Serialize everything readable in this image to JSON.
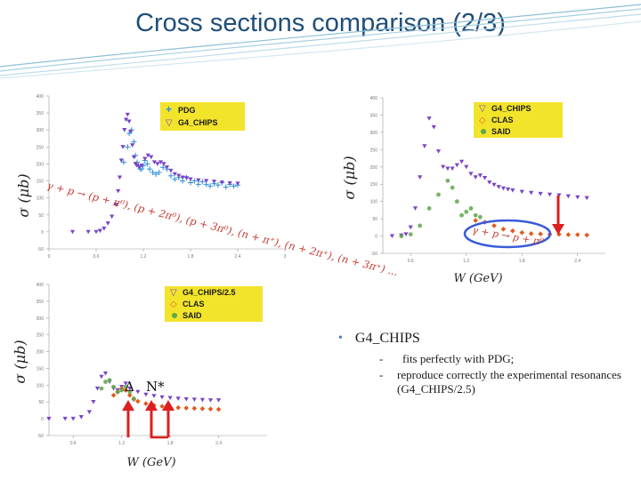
{
  "title": "Cross sections comparison  (2/3)",
  "colors": {
    "title": "#1f4e79",
    "pdg": "#2a8fd6",
    "chips": "#7a44c8",
    "clas": "#e25a1c",
    "said": "#5fa64a",
    "legend_bg": "#f2e42b",
    "arrow": "#dd1f1f",
    "bullet": "#3c79c9"
  },
  "panels": {
    "a": {
      "ylabel": "σ (μb)",
      "legend": [
        "PDG",
        "G4_CHIPS"
      ],
      "xticks": [
        "0",
        "0.6",
        "1.2",
        "1.8",
        "2.4",
        "3"
      ],
      "yticks": [
        "400",
        "350",
        "300",
        "250",
        "200",
        "150",
        "100",
        "50",
        "0",
        "-50"
      ],
      "annotation": "γ + p → (p + π⁰), (p + 2π⁰), (p + 3π⁰), (n + π⁺), (n + 2π⁺), (n + 3π⁺) ..."
    },
    "b": {
      "ylabel": "σ (μb)",
      "legend": [
        "G4_CHIPS",
        "CLAS",
        "SAID"
      ],
      "xticks": [
        "0.6",
        "1.2",
        "1.8",
        "2.4"
      ],
      "yticks": [
        "400",
        "350",
        "300",
        "250",
        "200",
        "150",
        "100",
        "50",
        "0",
        "-50"
      ],
      "xlabel": "W (GeV)",
      "annotation": "γ + p → p + π⁰"
    },
    "c": {
      "ylabel": "σ (μb)",
      "legend": [
        "G4_CHIPS/2.5",
        "CLAS",
        "SAID"
      ],
      "xticks": [
        "0.6",
        "1.2",
        "1.8",
        "2.4"
      ],
      "yticks": [
        "400",
        "350",
        "300",
        "250",
        "200",
        "150",
        "100",
        "50",
        "0",
        "-50"
      ],
      "xlabel": "W (GeV)",
      "delta_label": "Δ",
      "nstar_label": "N*"
    }
  },
  "bullets": {
    "main": "G4_CHIPS",
    "subs": [
      "fits perfectly with PDG;",
      "reproduce correctly the experimental resonances (G4_CHIPS/2.5)"
    ],
    "dash": "-"
  },
  "chart_data": [
    {
      "type": "scatter",
      "title": "",
      "xlabel": "",
      "ylabel": "σ (μb)",
      "xlim": [
        0,
        3
      ],
      "ylim": [
        -50,
        400
      ],
      "series": [
        {
          "name": "PDG",
          "marker": "plus",
          "x": [
            0.95,
            1.0,
            1.02,
            1.05,
            1.08,
            1.1,
            1.12,
            1.14,
            1.16,
            1.18,
            1.2,
            1.22,
            1.25,
            1.28,
            1.32,
            1.36,
            1.4,
            1.45,
            1.5,
            1.55,
            1.6,
            1.65,
            1.7,
            1.75,
            1.8,
            1.85,
            1.9,
            1.95,
            2.0,
            2.05,
            2.1,
            2.15,
            2.2,
            2.25,
            2.3,
            2.35,
            2.4
          ],
          "y": [
            205,
            250,
            290,
            300,
            265,
            225,
            205,
            195,
            185,
            185,
            195,
            210,
            200,
            185,
            175,
            170,
            175,
            190,
            185,
            165,
            155,
            160,
            150,
            160,
            145,
            150,
            140,
            148,
            140,
            135,
            142,
            138,
            145,
            132,
            140,
            135,
            138
          ]
        },
        {
          "name": "G4_CHIPS",
          "marker": "triangle-down",
          "x": [
            0.3,
            0.5,
            0.6,
            0.65,
            0.7,
            0.75,
            0.8,
            0.85,
            0.88,
            0.9,
            0.92,
            0.94,
            0.96,
            0.98,
            1.0,
            1.02,
            1.04,
            1.06,
            1.08,
            1.1,
            1.12,
            1.15,
            1.18,
            1.22,
            1.26,
            1.3,
            1.34,
            1.38,
            1.42,
            1.46,
            1.5,
            1.55,
            1.6,
            1.65,
            1.7,
            1.75,
            1.8,
            1.9,
            2.0,
            2.1,
            2.2,
            2.3,
            2.4
          ],
          "y": [
            0,
            0,
            0,
            3,
            10,
            25,
            45,
            80,
            120,
            160,
            210,
            250,
            300,
            330,
            345,
            325,
            295,
            255,
            220,
            200,
            195,
            190,
            195,
            215,
            225,
            220,
            205,
            200,
            205,
            200,
            190,
            180,
            170,
            165,
            160,
            158,
            155,
            152,
            150,
            148,
            145,
            143,
            142
          ]
        }
      ]
    },
    {
      "type": "scatter",
      "title": "",
      "xlabel": "W (GeV)",
      "ylabel": "σ (μb)",
      "xlim": [
        0.3,
        2.7
      ],
      "ylim": [
        -50,
        400
      ],
      "series": [
        {
          "name": "G4_CHIPS",
          "marker": "triangle-down",
          "x": [
            0.4,
            0.5,
            0.55,
            0.6,
            0.65,
            0.7,
            0.75,
            0.8,
            0.85,
            0.9,
            0.95,
            1.0,
            1.05,
            1.1,
            1.15,
            1.2,
            1.25,
            1.3,
            1.35,
            1.4,
            1.45,
            1.5,
            1.55,
            1.6,
            1.65,
            1.7,
            1.8,
            1.9,
            2.0,
            2.1,
            2.2,
            2.3,
            2.4,
            2.5
          ],
          "y": [
            0,
            2,
            5,
            25,
            80,
            170,
            260,
            340,
            315,
            245,
            200,
            195,
            195,
            205,
            215,
            200,
            180,
            170,
            175,
            168,
            155,
            148,
            142,
            138,
            135,
            132,
            128,
            125,
            122,
            120,
            118,
            115,
            112,
            110
          ]
        },
        {
          "name": "CLAS",
          "marker": "diamond",
          "x": [
            1.3,
            1.4,
            1.5,
            1.6,
            1.7,
            1.8,
            1.9,
            2.0,
            2.1,
            2.2,
            2.3,
            2.4,
            2.5
          ],
          "y": [
            45,
            40,
            30,
            20,
            15,
            10,
            7,
            6,
            5,
            5,
            4,
            4,
            3
          ]
        },
        {
          "name": "SAID",
          "marker": "circle",
          "x": [
            0.5,
            0.6,
            0.7,
            0.8,
            0.9,
            1.0,
            1.05,
            1.1,
            1.15,
            1.2,
            1.25,
            1.3,
            1.35
          ],
          "y": [
            0,
            5,
            30,
            80,
            120,
            160,
            140,
            100,
            60,
            70,
            80,
            60,
            55
          ]
        }
      ]
    },
    {
      "type": "scatter",
      "title": "",
      "xlabel": "W (GeV)",
      "ylabel": "σ (μb)",
      "xlim": [
        0.3,
        3.0
      ],
      "ylim": [
        -50,
        400
      ],
      "series": [
        {
          "name": "G4_CHIPS/2.5",
          "marker": "triangle-down",
          "x": [
            0.3,
            0.5,
            0.6,
            0.7,
            0.8,
            0.85,
            0.9,
            0.95,
            1.0,
            1.05,
            1.1,
            1.15,
            1.2,
            1.25,
            1.3,
            1.4,
            1.5,
            1.6,
            1.7,
            1.8,
            1.9,
            2.0,
            2.1,
            2.2,
            2.3,
            2.4
          ],
          "y": [
            0,
            0,
            0,
            5,
            20,
            50,
            90,
            125,
            135,
            110,
            90,
            85,
            95,
            105,
            90,
            80,
            72,
            68,
            64,
            62,
            60,
            58,
            57,
            56,
            55,
            55
          ]
        },
        {
          "name": "CLAS",
          "marker": "diamond",
          "x": [
            1.1,
            1.15,
            1.2,
            1.25,
            1.3,
            1.35,
            1.4,
            1.5,
            1.6,
            1.7,
            1.8,
            1.9,
            2.0,
            2.1,
            2.2,
            2.3,
            2.4
          ],
          "y": [
            70,
            80,
            90,
            85,
            70,
            58,
            52,
            45,
            40,
            37,
            35,
            33,
            32,
            31,
            30,
            29,
            28
          ]
        },
        {
          "name": "SAID",
          "marker": "circle",
          "x": [
            0.95,
            1.0,
            1.05,
            1.1,
            1.15,
            1.2,
            1.25,
            1.3,
            1.35
          ],
          "y": [
            90,
            110,
            115,
            95,
            80,
            85,
            95,
            80,
            60
          ]
        }
      ]
    }
  ]
}
